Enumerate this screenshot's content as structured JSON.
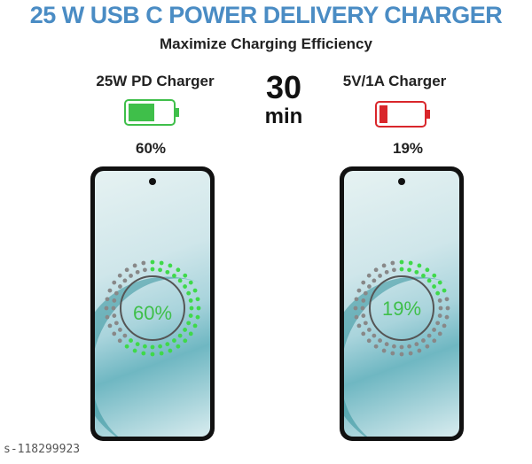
{
  "title": "25 W USB C POWER DELIVERY CHARGER",
  "subtitle": "Maximize Charging Efficiency",
  "time": {
    "value": "30",
    "unit": "min"
  },
  "left": {
    "label": "25W PD Charger",
    "percent": "60%",
    "level": 60,
    "color": "#3fbf4a"
  },
  "right": {
    "label": "5V/1A Charger",
    "percent": "19%",
    "level": 19,
    "color": "#d9262b"
  },
  "watermark": "s-118299923"
}
